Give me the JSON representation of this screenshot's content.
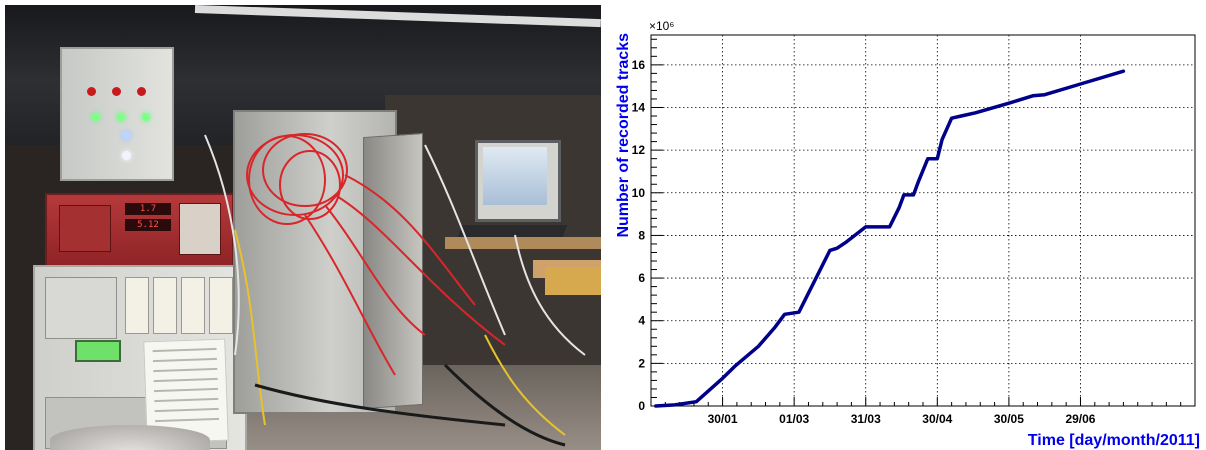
{
  "photo": {
    "description_icon": "photo-icon",
    "hv_display_top": "1.7",
    "hv_display_bottom": "5.12"
  },
  "colors": {
    "series": "#00008b",
    "axis_title": "#0000ee",
    "grid": "#000000"
  },
  "chart_data": {
    "type": "line",
    "title": "",
    "xlabel": "Time [day/month/2011]",
    "ylabel": "Number of recorded tracks",
    "y_multiplier_label": "×10⁶",
    "x_tick_labels": [
      "30/01",
      "01/03",
      "31/03",
      "30/04",
      "30/05",
      "29/06"
    ],
    "x_tick_days": [
      30,
      60,
      90,
      120,
      150,
      180
    ],
    "x_range_days": [
      0,
      228
    ],
    "y_ticks": [
      0,
      2,
      4,
      6,
      8,
      10,
      12,
      14,
      16
    ],
    "ylim": [
      0,
      17.4
    ],
    "grid": true,
    "series": [
      {
        "name": "",
        "x_days": [
          2,
          10,
          19,
          30,
          35,
          45,
          52,
          56,
          62,
          75,
          78,
          82,
          90,
          100,
          104,
          106,
          110,
          112,
          116,
          120,
          122,
          126,
          130,
          136,
          150,
          160,
          165,
          180,
          198
        ],
        "values": [
          0.0,
          0.05,
          0.2,
          1.3,
          1.85,
          2.8,
          3.7,
          4.3,
          4.4,
          7.3,
          7.4,
          7.7,
          8.4,
          8.4,
          9.3,
          9.9,
          9.9,
          10.5,
          11.6,
          11.6,
          12.5,
          13.5,
          13.6,
          13.75,
          14.2,
          14.55,
          14.6,
          15.1,
          15.7
        ]
      }
    ]
  }
}
